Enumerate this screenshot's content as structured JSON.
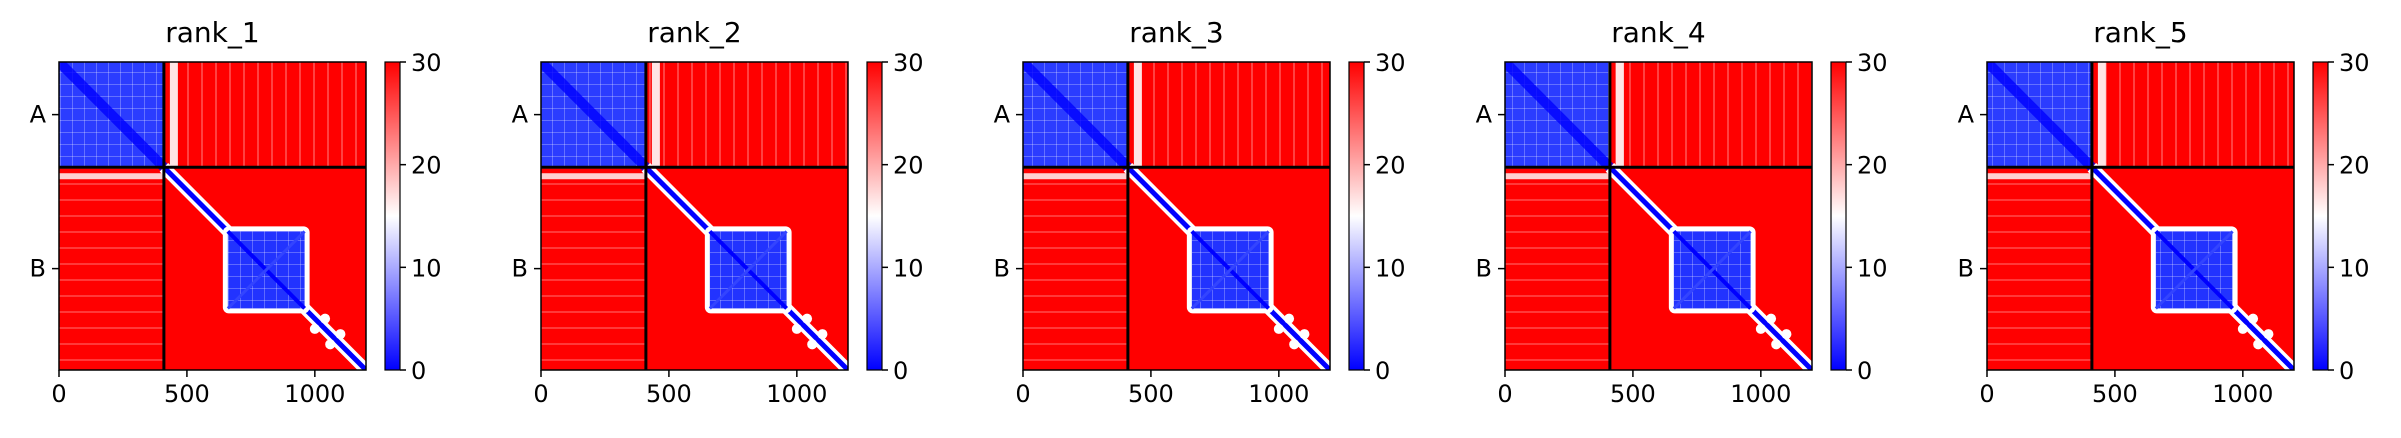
{
  "colorbar_colors": {
    "low": "#0000ff",
    "mid": "#ffffff",
    "high": "#ff0000"
  },
  "chart_data": [
    {
      "type": "heatmap",
      "title": "rank_1",
      "matrix_size": 1200,
      "chain_breaks": [
        410
      ],
      "x_ticks": [
        0,
        500,
        1000
      ],
      "y_labels": [
        "A",
        "B"
      ],
      "colorbar_ticks": [
        0,
        10,
        20,
        30
      ],
      "colorbar_range": [
        0,
        30
      ],
      "grid": false
    },
    {
      "type": "heatmap",
      "title": "rank_2",
      "matrix_size": 1200,
      "chain_breaks": [
        410
      ],
      "x_ticks": [
        0,
        500,
        1000
      ],
      "y_labels": [
        "A",
        "B"
      ],
      "colorbar_ticks": [
        0,
        10,
        20,
        30
      ],
      "colorbar_range": [
        0,
        30
      ],
      "grid": false
    },
    {
      "type": "heatmap",
      "title": "rank_3",
      "matrix_size": 1200,
      "chain_breaks": [
        410
      ],
      "x_ticks": [
        0,
        500,
        1000
      ],
      "y_labels": [
        "A",
        "B"
      ],
      "colorbar_ticks": [
        0,
        10,
        20,
        30
      ],
      "colorbar_range": [
        0,
        30
      ],
      "grid": false
    },
    {
      "type": "heatmap",
      "title": "rank_4",
      "matrix_size": 1200,
      "chain_breaks": [
        410
      ],
      "x_ticks": [
        0,
        500,
        1000
      ],
      "y_labels": [
        "A",
        "B"
      ],
      "colorbar_ticks": [
        0,
        10,
        20,
        30
      ],
      "colorbar_range": [
        0,
        30
      ],
      "grid": false
    },
    {
      "type": "heatmap",
      "title": "rank_5",
      "matrix_size": 1200,
      "chain_breaks": [
        410
      ],
      "x_ticks": [
        0,
        500,
        1000
      ],
      "y_labels": [
        "A",
        "B"
      ],
      "colorbar_ticks": [
        0,
        10,
        20,
        30
      ],
      "colorbar_range": [
        0,
        30
      ],
      "grid": false
    }
  ]
}
